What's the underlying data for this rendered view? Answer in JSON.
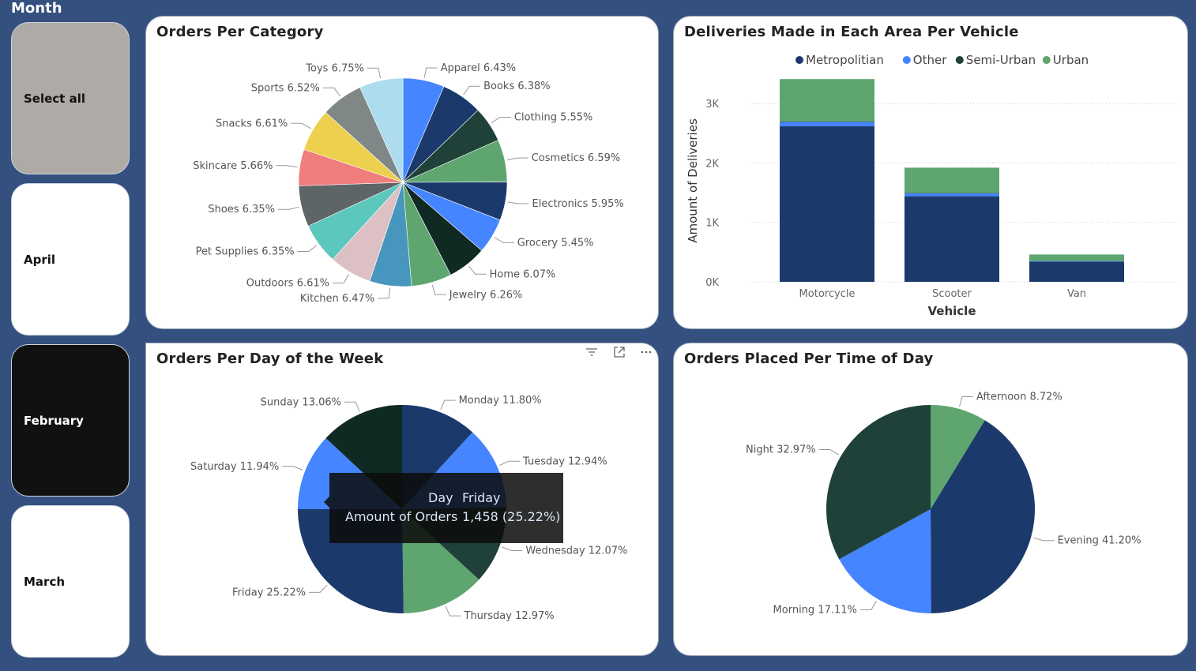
{
  "slicer": {
    "title": "Month",
    "items": [
      {
        "label": "Select all",
        "bg": "#aeaaa5",
        "fg": "#111111"
      },
      {
        "label": "April",
        "bg": "#ffffff",
        "fg": "#111111"
      },
      {
        "label": "February",
        "bg": "#111111",
        "fg": "#ffffff"
      },
      {
        "label": "March",
        "bg": "#ffffff",
        "fg": "#111111"
      }
    ]
  },
  "cards": {
    "category_title": "Orders Per Category",
    "delivery_title": "Deliveries Made in Each Area Per Vehicle",
    "day_title": "Orders Per Day of the Week",
    "time_title": "Orders Placed Per Time of Day"
  },
  "tooltip": {
    "key1": "Day",
    "val1": "Friday",
    "key2": "Amount of Orders",
    "val2": "1,458 (25.22%)"
  },
  "colors": {
    "dark_navy": "#1b3a6b",
    "blue": "#4585ff",
    "dark_green": "#1f4139",
    "green": "#5ea56f",
    "background": "#34507f"
  },
  "chart_data": [
    {
      "type": "pie",
      "title": "Orders Per Category",
      "slices": [
        {
          "label": "Apparel",
          "pct_label": "6.43%",
          "value": 6.43,
          "color": "#4585ff"
        },
        {
          "label": "Books",
          "pct_label": "6.38%",
          "value": 6.38,
          "color": "#1b3a6b"
        },
        {
          "label": "Clothing",
          "pct_label": "5.55%",
          "value": 5.55,
          "color": "#1f4139"
        },
        {
          "label": "Cosmetics",
          "pct_label": "6.59%",
          "value": 6.59,
          "color": "#5ea56f"
        },
        {
          "label": "Electronics",
          "pct_label": "5.95%",
          "value": 5.95,
          "color": "#1b3a6b"
        },
        {
          "label": "Grocery",
          "pct_label": "5.45%",
          "value": 5.45,
          "color": "#4585ff"
        },
        {
          "label": "Home",
          "pct_label": "6.07%",
          "value": 6.07,
          "color": "#0f2a22"
        },
        {
          "label": "Jewelry",
          "pct_label": "6.26%",
          "value": 6.26,
          "color": "#5ea56f"
        },
        {
          "label": "Kitchen",
          "pct_label": "6.47%",
          "value": 6.47,
          "color": "#4696bd"
        },
        {
          "label": "Outdoors",
          "pct_label": "6.61%",
          "value": 6.61,
          "color": "#dcc0c4"
        },
        {
          "label": "Pet Supplies",
          "pct_label": "6.35%",
          "value": 6.35,
          "color": "#5bc7bd"
        },
        {
          "label": "Shoes",
          "pct_label": "6.35%",
          "value": 6.35,
          "color": "#5d6566"
        },
        {
          "label": "Skincare",
          "pct_label": "5.66%",
          "value": 5.66,
          "color": "#f07e7c"
        },
        {
          "label": "Snacks",
          "pct_label": "6.61%",
          "value": 6.61,
          "color": "#ecd04e"
        },
        {
          "label": "Sports",
          "pct_label": "6.52%",
          "value": 6.52,
          "color": "#808787"
        },
        {
          "label": "Toys",
          "pct_label": "6.75%",
          "value": 6.75,
          "color": "#acdcee"
        }
      ]
    },
    {
      "type": "bar",
      "stacked": true,
      "title": "Deliveries Made in Each Area Per Vehicle",
      "xlabel": "Vehicle",
      "ylabel": "Amount of Deliveries",
      "categories": [
        "Motorcycle",
        "Scooter",
        "Van"
      ],
      "series": [
        {
          "name": "Metropolitian",
          "color": "#1b3a6b",
          "values": [
            2620,
            1440,
            340
          ]
        },
        {
          "name": "Other",
          "color": "#4585ff",
          "values": [
            70,
            50,
            10
          ]
        },
        {
          "name": "Semi-Urban",
          "color": "#1f4139",
          "values": [
            5,
            5,
            0
          ]
        },
        {
          "name": "Urban",
          "color": "#5ea56f",
          "values": [
            715,
            425,
            110
          ]
        }
      ],
      "ylim": [
        0,
        3400
      ],
      "yticks": [
        0,
        1000,
        2000,
        3000
      ],
      "ytick_labels": [
        "0K",
        "1K",
        "2K",
        "3K"
      ],
      "grid": true,
      "legend_position": "top"
    },
    {
      "type": "pie",
      "title": "Orders Per Day of the Week",
      "slices": [
        {
          "label": "Monday",
          "pct_label": "11.80%",
          "value": 11.8,
          "color": "#1b3a6b"
        },
        {
          "label": "Tuesday",
          "pct_label": "12.94%",
          "value": 12.94,
          "color": "#4585ff"
        },
        {
          "label": "Wednesday",
          "pct_label": "12.07%",
          "value": 12.07,
          "color": "#1f4139"
        },
        {
          "label": "Thursday",
          "pct_label": "12.97%",
          "value": 12.97,
          "color": "#5ea56f"
        },
        {
          "label": "Friday",
          "pct_label": "25.22%",
          "value": 25.22,
          "color": "#1b3a6b"
        },
        {
          "label": "Saturday",
          "pct_label": "11.94%",
          "value": 11.94,
          "color": "#4585ff"
        },
        {
          "label": "Sunday",
          "pct_label": "13.06%",
          "value": 13.06,
          "color": "#0f2a22"
        }
      ]
    },
    {
      "type": "pie",
      "title": "Orders Placed Per Time of Day",
      "slices": [
        {
          "label": "Afternoon",
          "pct_label": "8.72%",
          "value": 8.72,
          "color": "#5ea56f"
        },
        {
          "label": "Evening",
          "pct_label": "41.20%",
          "value": 41.2,
          "color": "#1b3a6b"
        },
        {
          "label": "Morning",
          "pct_label": "17.11%",
          "value": 17.11,
          "color": "#4585ff"
        },
        {
          "label": "Night",
          "pct_label": "32.97%",
          "value": 32.97,
          "color": "#1f4139"
        }
      ]
    }
  ]
}
